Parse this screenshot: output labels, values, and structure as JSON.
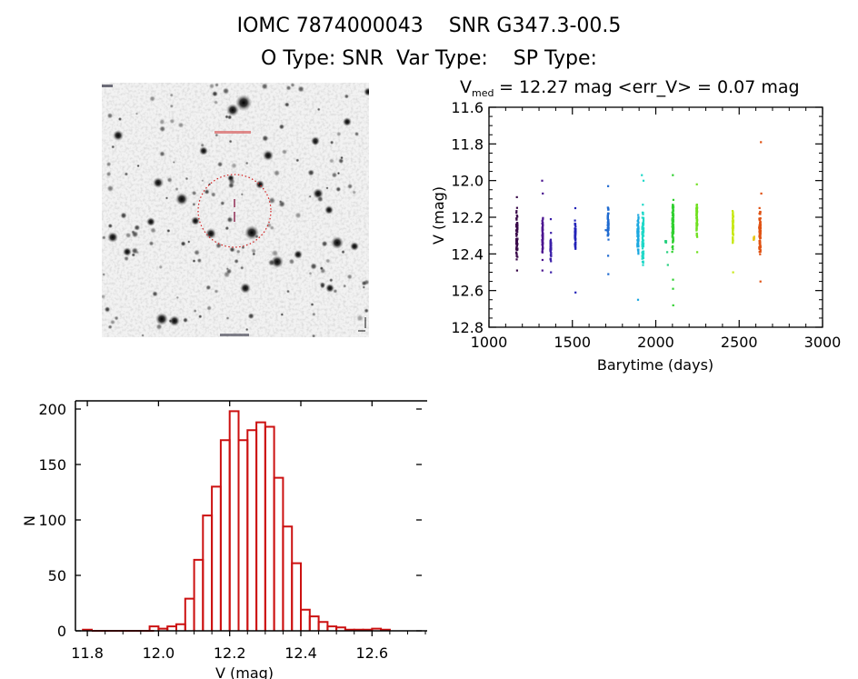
{
  "header": {
    "line1": "IOMC 7874000043    SNR G347.3-00.5",
    "line2": "O Type: SNR  Var Type:    SP Type:"
  },
  "thumbnail": {
    "description": "Finding chart, inverted greyscale star field with dotted red circle around target",
    "circle_color": "#d22020",
    "marker_color": "#8a1f4a"
  },
  "chart_data": [
    {
      "id": "light-curve",
      "type": "scatter",
      "title_main": "V",
      "title_sub": "med",
      "title_rest": " = 12.27 mag <err_V> = 0.07 mag",
      "xlabel": "Barytime (days)",
      "ylabel": "V (mag)",
      "xlim": [
        1000,
        3000
      ],
      "ylim": [
        11.6,
        12.8
      ],
      "y_inverted": true,
      "xticks": [
        1000,
        1500,
        2000,
        2500,
        3000
      ],
      "xtick_labels": [
        "1000",
        "1500",
        "2000",
        "2500",
        "3000"
      ],
      "yticks": [
        11.6,
        11.8,
        12.0,
        12.2,
        12.4,
        12.6,
        12.8
      ],
      "ytick_labels": [
        "11.6",
        "11.8",
        "12.0",
        "12.2",
        "12.4",
        "12.6",
        "12.8"
      ],
      "grid": false,
      "seasons": [
        {
          "x": 1167,
          "v_min": 12.13,
          "v_max": 12.47,
          "color": "#3a0a4a",
          "outliers": [
            [
              1167,
              12.09
            ],
            [
              1168,
              12.49
            ]
          ]
        },
        {
          "x": 1321,
          "v_min": 12.17,
          "v_max": 12.45,
          "color": "#4b1590",
          "outliers": [
            [
              1318,
              12.0
            ],
            [
              1322,
              12.07
            ],
            [
              1320,
              12.49
            ]
          ]
        },
        {
          "x": 1370,
          "v_min": 12.27,
          "v_max": 12.46,
          "color": "#3a1fa8",
          "outliers": [
            [
              1370,
              12.21
            ],
            [
              1371,
              12.5
            ]
          ]
        },
        {
          "x": 1517,
          "v_min": 12.18,
          "v_max": 12.41,
          "color": "#2222b8",
          "outliers": [
            [
              1517,
              12.15
            ],
            [
              1518,
              12.61
            ]
          ]
        },
        {
          "x": 1714,
          "v_min": 12.11,
          "v_max": 12.36,
          "color": "#1e6ad0",
          "outliers": [
            [
              1714,
              12.03
            ],
            [
              1700,
              12.27
            ],
            [
              1714,
              12.41
            ],
            [
              1715,
              12.51
            ]
          ]
        },
        {
          "x": 1893,
          "v_min": 12.14,
          "v_max": 12.45,
          "color": "#1aa8e0",
          "outliers": [
            [
              1893,
              12.65
            ]
          ]
        },
        {
          "x": 1922,
          "v_min": 12.09,
          "v_max": 12.52,
          "color": "#20d8c8",
          "outliers": [
            [
              1916,
              11.97
            ],
            [
              1926,
              12.0
            ]
          ]
        },
        {
          "x": 2060,
          "v_min": 12.32,
          "v_max": 12.34,
          "color": "#28d080",
          "outliers": [
            [
              2068,
              12.39
            ],
            [
              2072,
              12.46
            ]
          ]
        },
        {
          "x": 2102,
          "v_min": 12.03,
          "v_max": 12.42,
          "color": "#30d030",
          "outliers": [
            [
              2102,
              11.97
            ],
            [
              2103,
              12.54
            ],
            [
              2103,
              12.59
            ],
            [
              2104,
              12.68
            ]
          ]
        },
        {
          "x": 2246,
          "v_min": 12.07,
          "v_max": 12.35,
          "color": "#70e020",
          "outliers": [
            [
              2246,
              12.02
            ],
            [
              2248,
              12.39
            ]
          ]
        },
        {
          "x": 2462,
          "v_min": 12.12,
          "v_max": 12.38,
          "color": "#c8e818",
          "outliers": [
            [
              2463,
              12.5
            ]
          ]
        },
        {
          "x": 2588,
          "v_min": 12.3,
          "v_max": 12.33,
          "color": "#e8c820",
          "outliers": []
        },
        {
          "x": 2624,
          "v_min": 12.1,
          "v_max": 12.46,
          "color": "#e05010",
          "outliers": [
            [
              2630,
              11.79
            ],
            [
              2632,
              12.07
            ],
            [
              2627,
              12.55
            ]
          ]
        }
      ]
    },
    {
      "id": "histogram",
      "type": "bar",
      "xlabel": "V (mag)",
      "ylabel": "N",
      "xlim": [
        11.767,
        12.73
      ],
      "ylim": [
        0,
        200
      ],
      "xticks": [
        11.8,
        12.0,
        12.2,
        12.4,
        12.6
      ],
      "xtick_labels": [
        "11.8",
        "12.0",
        "12.2",
        "12.4",
        "12.6"
      ],
      "yticks": [
        0,
        50,
        100,
        150,
        200
      ],
      "ytick_labels": [
        "0",
        "50",
        "100",
        "150",
        "200"
      ],
      "bar_color": "#cc1111",
      "bin_width": 0.025,
      "bins": [
        {
          "center": 11.8,
          "count": 1
        },
        {
          "center": 11.825,
          "count": 0
        },
        {
          "center": 11.85,
          "count": 0
        },
        {
          "center": 11.875,
          "count": 0
        },
        {
          "center": 11.9,
          "count": 0
        },
        {
          "center": 11.925,
          "count": 0
        },
        {
          "center": 11.95,
          "count": 0
        },
        {
          "center": 11.975,
          "count": 0
        },
        {
          "center": 11.9875,
          "count": 4
        },
        {
          "center": 12.0125,
          "count": 2
        },
        {
          "center": 12.0375,
          "count": 4
        },
        {
          "center": 12.0625,
          "count": 6
        },
        {
          "center": 12.0875,
          "count": 29
        },
        {
          "center": 12.1125,
          "count": 64
        },
        {
          "center": 12.1375,
          "count": 104
        },
        {
          "center": 12.1625,
          "count": 130
        },
        {
          "center": 12.1875,
          "count": 172
        },
        {
          "center": 12.2125,
          "count": 198
        },
        {
          "center": 12.2375,
          "count": 172
        },
        {
          "center": 12.2625,
          "count": 181
        },
        {
          "center": 12.2875,
          "count": 188
        },
        {
          "center": 12.3125,
          "count": 184
        },
        {
          "center": 12.3375,
          "count": 138
        },
        {
          "center": 12.3625,
          "count": 94
        },
        {
          "center": 12.3875,
          "count": 61
        },
        {
          "center": 12.4125,
          "count": 19
        },
        {
          "center": 12.4375,
          "count": 13
        },
        {
          "center": 12.4625,
          "count": 8
        },
        {
          "center": 12.4875,
          "count": 4
        },
        {
          "center": 12.5125,
          "count": 3
        },
        {
          "center": 12.5375,
          "count": 1
        },
        {
          "center": 12.5625,
          "count": 1
        },
        {
          "center": 12.5875,
          "count": 1
        },
        {
          "center": 12.6125,
          "count": 2
        },
        {
          "center": 12.6375,
          "count": 1
        }
      ]
    }
  ]
}
